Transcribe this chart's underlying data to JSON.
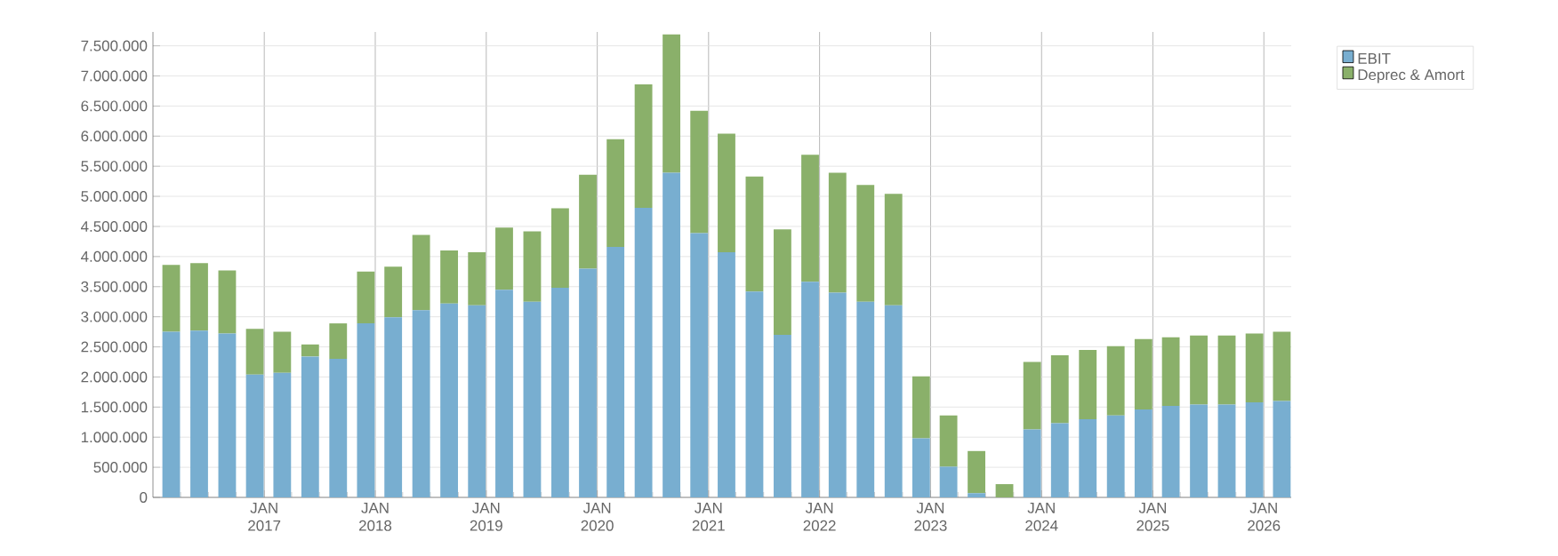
{
  "chart_data": {
    "type": "bar",
    "stacked": true,
    "grid": true,
    "legend": "top right",
    "x": [
      "2016-03",
      "2016-06",
      "2016-09",
      "2016-12",
      "2017-03",
      "2017-06",
      "2017-09",
      "2017-12",
      "2018-03",
      "2018-06",
      "2018-09",
      "2018-12",
      "2019-03",
      "2019-06",
      "2019-09",
      "2019-12",
      "2020-03",
      "2020-06",
      "2020-09",
      "2020-12",
      "2021-03",
      "2021-06",
      "2021-09",
      "2021-12",
      "2022-03",
      "2022-06",
      "2022-09",
      "2022-12",
      "2023-03",
      "2023-06",
      "2023-09",
      "2023-12",
      "2024-03",
      "2024-06",
      "2024-09",
      "2024-12",
      "2025-03",
      "2025-06",
      "2025-09",
      "2025-12",
      "2026-03"
    ],
    "series": [
      {
        "name": "EBIT",
        "color": "#78aed0",
        "values": [
          2750000,
          2770000,
          2720000,
          2040000,
          2070000,
          2340000,
          2300000,
          2890000,
          2990000,
          3110000,
          3220000,
          3190000,
          3450000,
          3250000,
          3480000,
          3800000,
          4160000,
          4810000,
          5390000,
          4390000,
          4070000,
          3420000,
          2700000,
          3580000,
          3400000,
          3250000,
          3190000,
          980000,
          510000,
          70000,
          0,
          1130000,
          1230000,
          1300000,
          1360000,
          1460000,
          1520000,
          1540000,
          1540000,
          1580000,
          1600000
        ]
      },
      {
        "name": "Deprec & Amort",
        "color": "#8ab06a",
        "values": [
          1110000,
          1120000,
          1050000,
          760000,
          680000,
          200000,
          590000,
          860000,
          840000,
          1250000,
          880000,
          880000,
          1030000,
          1170000,
          1320000,
          1560000,
          1790000,
          2050000,
          2300000,
          2030000,
          1970000,
          1910000,
          1750000,
          2110000,
          1990000,
          1940000,
          1850000,
          1030000,
          850000,
          700000,
          220000,
          1120000,
          1130000,
          1150000,
          1150000,
          1170000,
          1140000,
          1150000,
          1150000,
          1140000,
          1150000
        ]
      }
    ],
    "xlim": [
      "2016-01",
      "2026-04"
    ],
    "xticks": [
      {
        "value": "2016-04",
        "label": null
      },
      {
        "value": "2016-07",
        "label": null
      },
      {
        "value": "2016-10",
        "label": null
      },
      {
        "value": "2017-01",
        "label": "JAN 2017"
      },
      {
        "value": "2017-04",
        "label": null
      },
      {
        "value": "2017-07",
        "label": null
      },
      {
        "value": "2017-10",
        "label": null
      },
      {
        "value": "2018-01",
        "label": "JAN 2018"
      },
      {
        "value": "2018-04",
        "label": null
      },
      {
        "value": "2018-07",
        "label": null
      },
      {
        "value": "2018-10",
        "label": null
      },
      {
        "value": "2019-01",
        "label": "JAN 2019"
      },
      {
        "value": "2019-04",
        "label": null
      },
      {
        "value": "2019-07",
        "label": null
      },
      {
        "value": "2019-10",
        "label": null
      },
      {
        "value": "2020-01",
        "label": "JAN 2020"
      },
      {
        "value": "2020-04",
        "label": null
      },
      {
        "value": "2020-07",
        "label": null
      },
      {
        "value": "2020-10",
        "label": null
      },
      {
        "value": "2021-01",
        "label": "JAN 2021"
      },
      {
        "value": "2021-04",
        "label": null
      },
      {
        "value": "2021-07",
        "label": null
      },
      {
        "value": "2021-10",
        "label": null
      },
      {
        "value": "2022-01",
        "label": "JAN 2022"
      },
      {
        "value": "2022-04",
        "label": null
      },
      {
        "value": "2022-07",
        "label": null
      },
      {
        "value": "2022-10",
        "label": null
      },
      {
        "value": "2023-01",
        "label": "JAN 2023"
      },
      {
        "value": "2023-04",
        "label": null
      },
      {
        "value": "2023-07",
        "label": null
      },
      {
        "value": "2023-10",
        "label": null
      },
      {
        "value": "2024-01",
        "label": "JAN 2024"
      },
      {
        "value": "2024-04",
        "label": null
      },
      {
        "value": "2024-07",
        "label": null
      },
      {
        "value": "2024-10",
        "label": null
      },
      {
        "value": "2025-01",
        "label": "JAN 2025"
      },
      {
        "value": "2025-04",
        "label": null
      },
      {
        "value": "2025-07",
        "label": null
      },
      {
        "value": "2025-10",
        "label": null
      },
      {
        "value": "2026-01",
        "label": "JAN 2026"
      }
    ],
    "ylim": [
      0,
      7730000
    ],
    "yticks": [
      {
        "value": 0,
        "label": "0"
      },
      {
        "value": 500000,
        "label": "500.000"
      },
      {
        "value": 1000000,
        "label": "1.000.000"
      },
      {
        "value": 1500000,
        "label": "1.500.000"
      },
      {
        "value": 2000000,
        "label": "2.000.000"
      },
      {
        "value": 2500000,
        "label": "2.500.000"
      },
      {
        "value": 3000000,
        "label": "3.000.000"
      },
      {
        "value": 3500000,
        "label": "3.500.000"
      },
      {
        "value": 4000000,
        "label": "4.000.000"
      },
      {
        "value": 4500000,
        "label": "4.500.000"
      },
      {
        "value": 5000000,
        "label": "5.000.000"
      },
      {
        "value": 5500000,
        "label": "5.500.000"
      },
      {
        "value": 6000000,
        "label": "6.000.000"
      },
      {
        "value": 6500000,
        "label": "6.500.000"
      },
      {
        "value": 7000000,
        "label": "7.000.000"
      },
      {
        "value": 7500000,
        "label": "7.500.000"
      }
    ]
  }
}
